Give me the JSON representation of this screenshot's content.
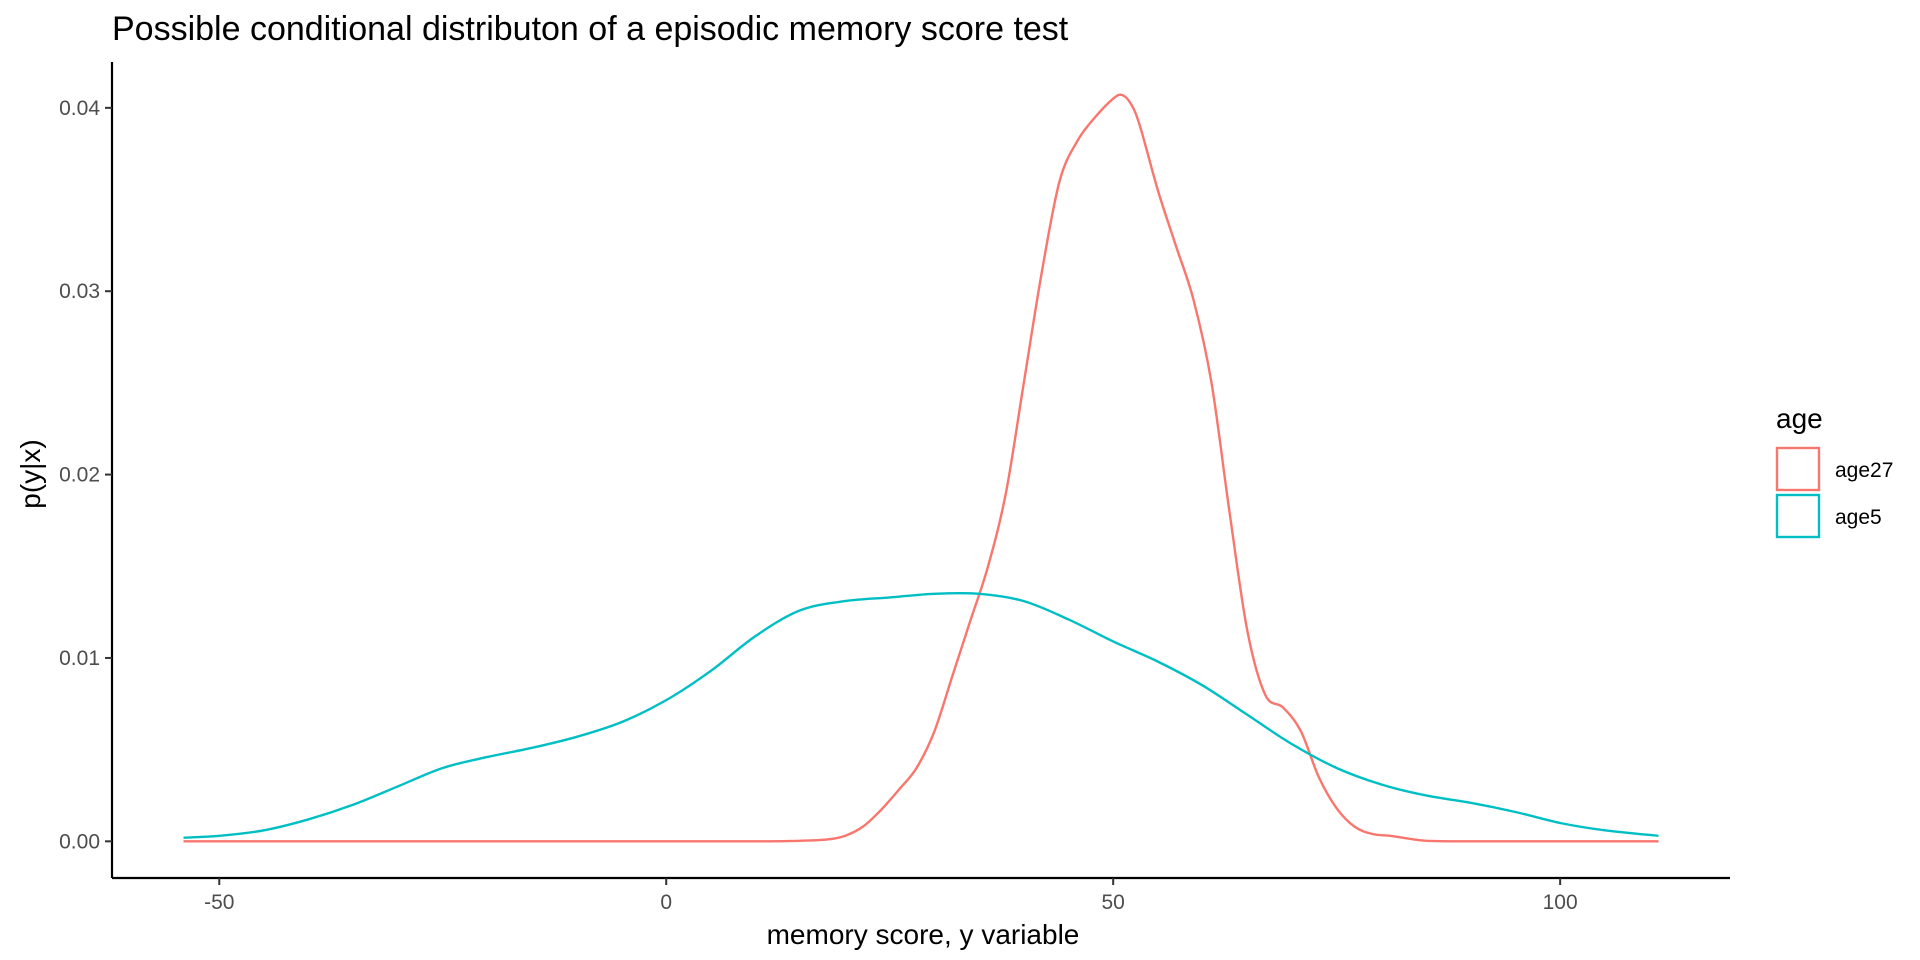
{
  "chart_data": {
    "type": "line",
    "title": "Possible conditional distributon of a episodic memory score test",
    "xlabel": "memory score, y variable",
    "ylabel": "p(y|x)",
    "xlim": [
      -62,
      119
    ],
    "ylim": [
      -0.002,
      0.0425
    ],
    "xticks": [
      -50,
      0,
      50,
      100
    ],
    "xtick_labels": [
      "-50",
      "0",
      "50",
      "100"
    ],
    "yticks": [
      0,
      0.01,
      0.02,
      0.03,
      0.04
    ],
    "ytick_labels": [
      "0.00",
      "0.01",
      "0.02",
      "0.03",
      "0.04"
    ],
    "grid": false,
    "legend": {
      "title": "age",
      "position": "right"
    },
    "series": [
      {
        "name": "age27",
        "color": "#F8766D",
        "points": [
          [
            -54,
            0
          ],
          [
            -20,
            0
          ],
          [
            0,
            0
          ],
          [
            10,
            0
          ],
          [
            15,
            3e-05
          ],
          [
            18,
            0.0001
          ],
          [
            20,
            0.0003
          ],
          [
            22,
            0.0008
          ],
          [
            24,
            0.0017
          ],
          [
            26,
            0.0028
          ],
          [
            28,
            0.004
          ],
          [
            30,
            0.006
          ],
          [
            32,
            0.009
          ],
          [
            34,
            0.012
          ],
          [
            36,
            0.015
          ],
          [
            38,
            0.019
          ],
          [
            40,
            0.025
          ],
          [
            42,
            0.031
          ],
          [
            44,
            0.036
          ],
          [
            46,
            0.0382
          ],
          [
            48,
            0.0395
          ],
          [
            50,
            0.0405
          ],
          [
            51,
            0.0407
          ],
          [
            52,
            0.0402
          ],
          [
            53,
            0.039
          ],
          [
            55,
            0.0355
          ],
          [
            57,
            0.0325
          ],
          [
            59,
            0.0295
          ],
          [
            61,
            0.025
          ],
          [
            63,
            0.018
          ],
          [
            65,
            0.0115
          ],
          [
            67,
            0.008
          ],
          [
            69,
            0.0073
          ],
          [
            71,
            0.006
          ],
          [
            73,
            0.0035
          ],
          [
            75,
            0.0018
          ],
          [
            77,
            0.0008
          ],
          [
            79,
            0.0004
          ],
          [
            81,
            0.0003
          ],
          [
            83,
            0.00015
          ],
          [
            85,
            3e-05
          ],
          [
            90,
            0
          ],
          [
            100,
            0
          ],
          [
            111,
            0
          ]
        ]
      },
      {
        "name": "age5",
        "color": "#00BFC4",
        "points": [
          [
            -54,
            0.0002
          ],
          [
            -50,
            0.0003
          ],
          [
            -45,
            0.0006
          ],
          [
            -40,
            0.0012
          ],
          [
            -35,
            0.002
          ],
          [
            -30,
            0.003
          ],
          [
            -25,
            0.004
          ],
          [
            -20,
            0.0046
          ],
          [
            -15,
            0.0051
          ],
          [
            -10,
            0.0057
          ],
          [
            -5,
            0.0065
          ],
          [
            0,
            0.0077
          ],
          [
            5,
            0.0093
          ],
          [
            10,
            0.0112
          ],
          [
            15,
            0.0126
          ],
          [
            20,
            0.0131
          ],
          [
            25,
            0.0133
          ],
          [
            30,
            0.0135
          ],
          [
            35,
            0.0135
          ],
          [
            40,
            0.0131
          ],
          [
            45,
            0.0121
          ],
          [
            50,
            0.0109
          ],
          [
            55,
            0.0098
          ],
          [
            60,
            0.0085
          ],
          [
            65,
            0.0069
          ],
          [
            70,
            0.0053
          ],
          [
            75,
            0.004
          ],
          [
            80,
            0.0031
          ],
          [
            85,
            0.0025
          ],
          [
            90,
            0.0021
          ],
          [
            95,
            0.0016
          ],
          [
            100,
            0.001
          ],
          [
            105,
            0.0006
          ],
          [
            111,
            0.0003
          ]
        ]
      }
    ]
  }
}
